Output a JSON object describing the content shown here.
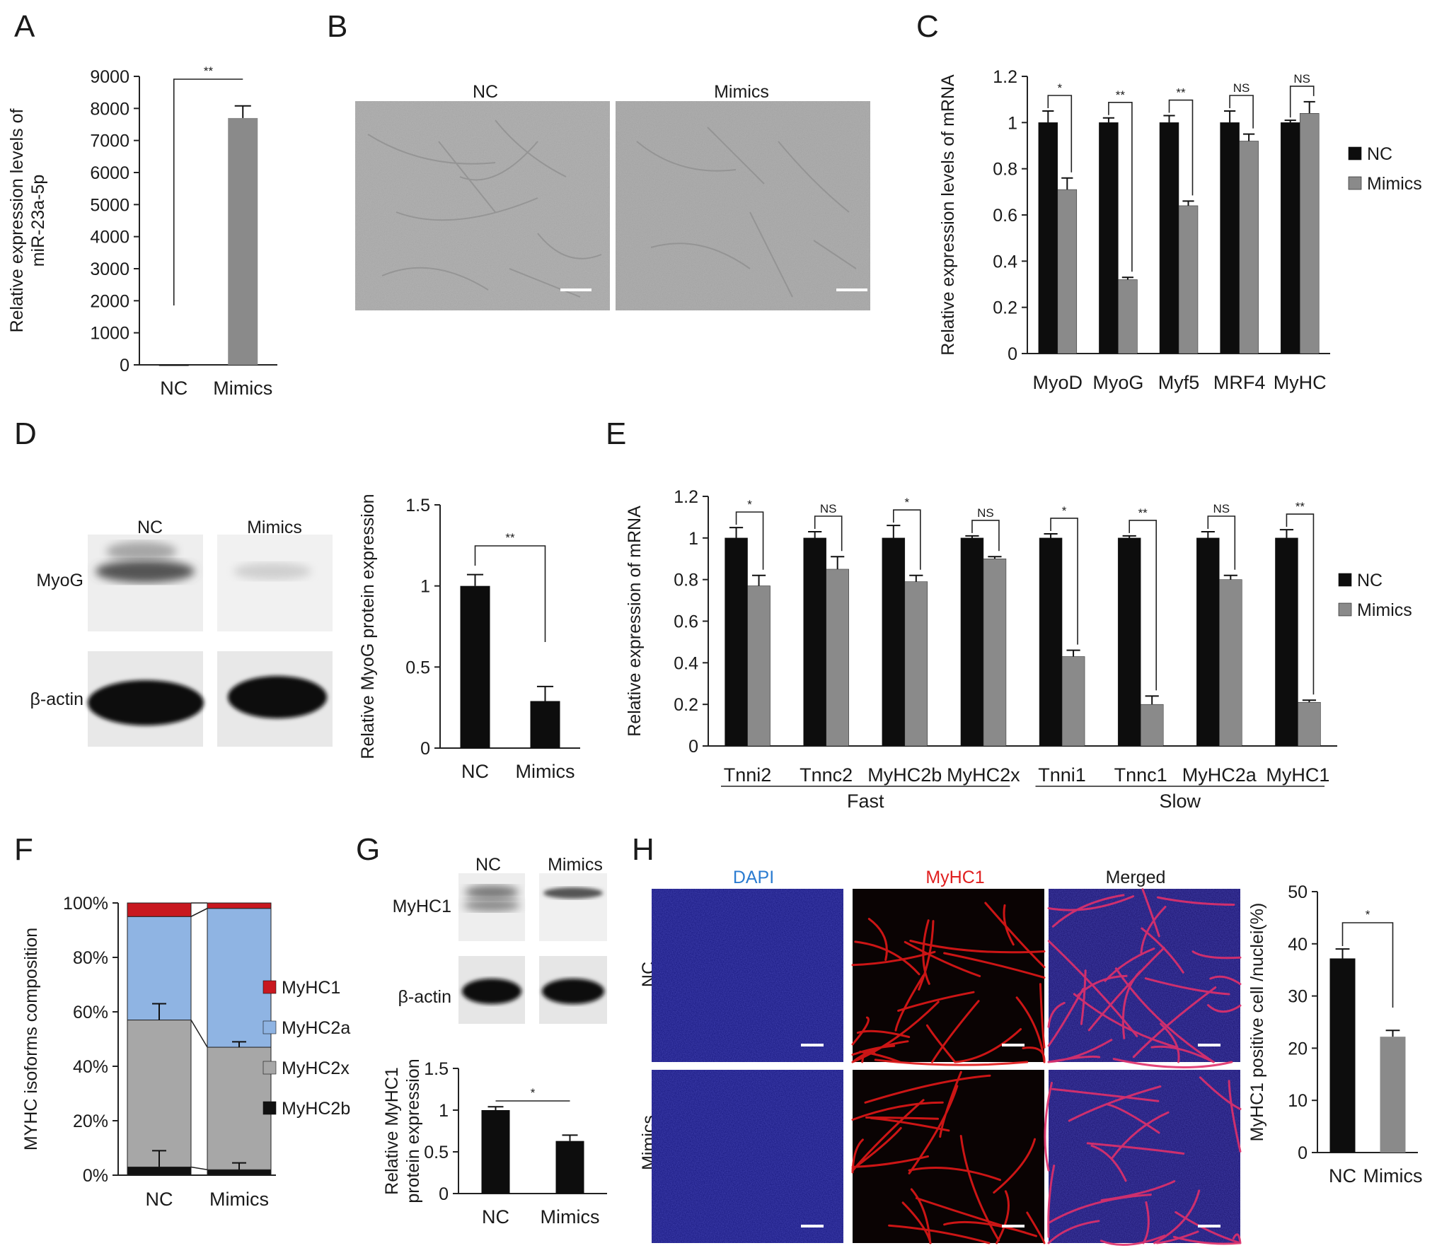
{
  "panel_letters": [
    "A",
    "B",
    "C",
    "D",
    "E",
    "F",
    "G",
    "H"
  ],
  "colors": {
    "nc": "#0d0d0d",
    "mimics": "#8a8a8a",
    "MyHC1": "#c8181f",
    "MyHC2a": "#8fb4e3",
    "MyHC2x": "#a7a7a7",
    "MyHC2b": "#111111",
    "micrograph": "#b2b2b2",
    "dapi": "#1f1ea8",
    "myhc1_stain": "#e11717",
    "title_dapi": "#2b7cd1",
    "title_myhc1": "#e02020",
    "title_merged": "#111111"
  },
  "panel_b": {
    "labels": [
      "NC",
      "Mimics"
    ]
  },
  "panel_d": {
    "lane_labels": [
      "NC",
      "Mimics"
    ],
    "row_labels": [
      "MyoG",
      "β-actin"
    ]
  },
  "panel_g": {
    "lane_labels": [
      "NC",
      "Mimics"
    ],
    "row_labels": [
      "MyHC1",
      "β-actin"
    ]
  },
  "panel_h": {
    "column_titles": [
      "DAPI",
      "MyHC1",
      "Merged"
    ],
    "row_labels": [
      "NC",
      "Mimics"
    ]
  },
  "chart_data": [
    {
      "panel": "A",
      "type": "bar",
      "categories": [
        "NC",
        "Mimics"
      ],
      "values": [
        1,
        7700
      ],
      "errors": [
        0,
        380
      ],
      "ylabel": [
        "Relative expression levels of",
        "miR-23a-5p"
      ],
      "ylim": [
        0,
        9000
      ],
      "yticks": [
        0,
        1000,
        2000,
        3000,
        4000,
        5000,
        6000,
        7000,
        8000,
        9000
      ],
      "significance": [
        "**"
      ],
      "grid": false
    },
    {
      "panel": "C",
      "type": "bar",
      "categories": [
        "MyoD",
        "MyoG",
        "Myf5",
        "MRF4",
        "MyHC"
      ],
      "series": [
        {
          "name": "NC",
          "values": [
            1.0,
            1.0,
            1.0,
            1.0,
            1.0
          ],
          "errors": [
            0.05,
            0.02,
            0.03,
            0.05,
            0.01
          ]
        },
        {
          "name": "Mimics",
          "values": [
            0.71,
            0.32,
            0.64,
            0.92,
            1.04
          ],
          "errors": [
            0.05,
            0.01,
            0.02,
            0.03,
            0.05
          ]
        }
      ],
      "ylabel": [
        "Relative expression levels of  mRNA"
      ],
      "ylim": [
        0,
        1.2
      ],
      "yticks": [
        "0",
        "0.2",
        "0.4",
        "0.6",
        "0.8",
        "1",
        "1.2"
      ],
      "significance": [
        "*",
        "**",
        "**",
        "NS",
        "NS"
      ],
      "legend": "right",
      "grid": false
    },
    {
      "panel": "D",
      "type": "bar",
      "categories": [
        "NC",
        "Mimics"
      ],
      "values": [
        1.0,
        0.29
      ],
      "errors": [
        0.07,
        0.09
      ],
      "ylabel": [
        "Relative MyoG protein expression"
      ],
      "ylim": [
        0,
        1.5
      ],
      "yticks": [
        "0",
        "0.5",
        "1",
        "1.5"
      ],
      "significance": [
        "**"
      ],
      "grid": false
    },
    {
      "panel": "E",
      "type": "bar",
      "categories": [
        "Tnni2",
        "Tnnc2",
        "MyHC2b",
        "MyHC2x",
        "Tnni1",
        "Tnnc1",
        "MyHC2a",
        "MyHC1"
      ],
      "groups": [
        {
          "label": "Fast",
          "categories": [
            "Tnni2",
            "Tnnc2",
            "MyHC2b",
            "MyHC2x"
          ]
        },
        {
          "label": "Slow",
          "categories": [
            "Tnni1",
            "Tnnc1",
            "MyHC2a",
            "MyHC1"
          ]
        }
      ],
      "series": [
        {
          "name": "NC",
          "values": [
            1.0,
            1.0,
            1.0,
            1.0,
            1.0,
            1.0,
            1.0,
            1.0
          ],
          "errors": [
            0.05,
            0.03,
            0.06,
            0.01,
            0.02,
            0.01,
            0.03,
            0.04
          ]
        },
        {
          "name": "Mimics",
          "values": [
            0.77,
            0.85,
            0.79,
            0.9,
            0.43,
            0.2,
            0.8,
            0.21
          ],
          "errors": [
            0.05,
            0.06,
            0.03,
            0.01,
            0.03,
            0.04,
            0.02,
            0.01
          ]
        }
      ],
      "ylabel": [
        "Relative expression of  mRNA"
      ],
      "ylim": [
        0,
        1.2
      ],
      "yticks": [
        "0",
        "0.2",
        "0.4",
        "0.6",
        "0.8",
        "1",
        "1.2"
      ],
      "significance": [
        "*",
        "NS",
        "*",
        "NS",
        "*",
        "**",
        "NS",
        "**"
      ],
      "legend": "right",
      "grid": false
    },
    {
      "panel": "F",
      "type": "bar",
      "stacked": true,
      "categories": [
        "NC",
        "Mimics"
      ],
      "series": [
        {
          "name": "MyHC2b",
          "values": [
            3,
            2
          ]
        },
        {
          "name": "MyHC2x",
          "values": [
            54,
            45
          ]
        },
        {
          "name": "MyHC2a",
          "values": [
            38,
            51
          ]
        },
        {
          "name": "MyHC1",
          "values": [
            5,
            2
          ]
        }
      ],
      "errors": {
        "MyHC2b": [
          6,
          2.5
        ],
        "MyHC2x": [
          6,
          2
        ]
      },
      "legend_order": [
        "MyHC1",
        "MyHC2a",
        "MyHC2x",
        "MyHC2b"
      ],
      "ylabel": [
        "MYHC isoforms composition"
      ],
      "ylim": [
        0,
        100
      ],
      "yticks": [
        "0%",
        "20%",
        "40%",
        "60%",
        "80%",
        "100%"
      ],
      "legend": "right",
      "grid": false
    },
    {
      "panel": "G",
      "type": "bar",
      "categories": [
        "NC",
        "Mimics"
      ],
      "values": [
        1.0,
        0.63
      ],
      "errors": [
        0.04,
        0.07
      ],
      "ylabel": [
        "Relative MyHC1",
        "protein expression"
      ],
      "ylim": [
        0,
        1.5
      ],
      "yticks": [
        "0",
        "0.5",
        "1",
        "1.5"
      ],
      "significance": [
        "*"
      ],
      "grid": false
    },
    {
      "panel": "H",
      "type": "bar",
      "categories": [
        "NC",
        "Mimics"
      ],
      "values": [
        37.2,
        22.2
      ],
      "errors": [
        1.8,
        1.2
      ],
      "ylabel": [
        "MyHC1 positive cell /nuclei(%)"
      ],
      "ylim": [
        0,
        50
      ],
      "yticks": [
        "0",
        "10",
        "20",
        "30",
        "40",
        "50"
      ],
      "significance": [
        "*"
      ],
      "grid": false
    }
  ]
}
